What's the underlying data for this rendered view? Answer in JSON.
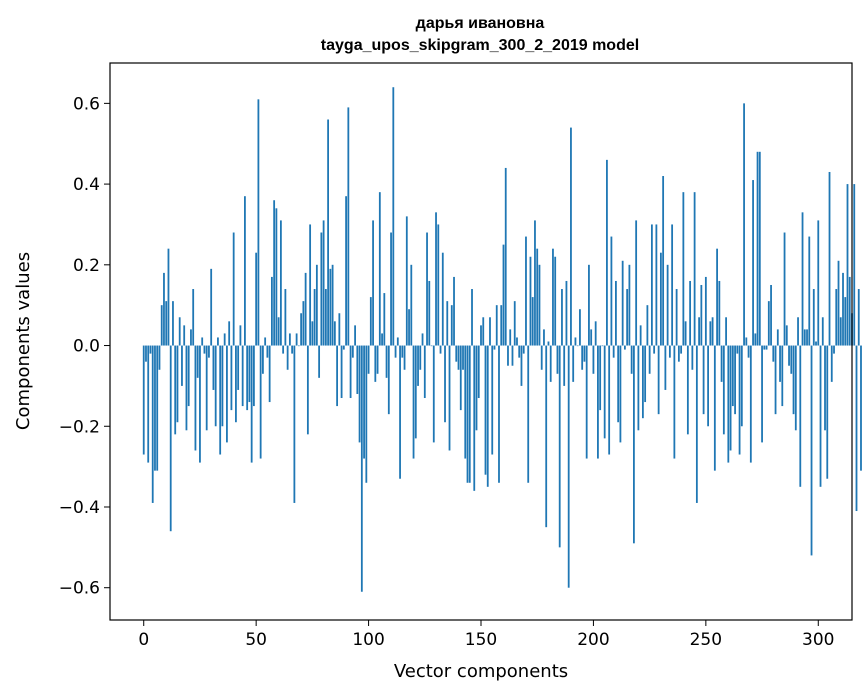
{
  "chart_data": {
    "type": "bar",
    "title": "дарья ивановна",
    "subtitle": "tayga_upos_skipgram_300_2_2019 model",
    "xlabel": "Vector components",
    "ylabel": "Components values",
    "xlim": [
      -15,
      315
    ],
    "ylim": [
      -0.68,
      0.7
    ],
    "grid": false,
    "bar_color": "#1f77b4",
    "x_ticks": [
      {
        "value": 0,
        "label": "0"
      },
      {
        "value": 50,
        "label": "50"
      },
      {
        "value": 100,
        "label": "100"
      },
      {
        "value": 150,
        "label": "150"
      },
      {
        "value": 200,
        "label": "200"
      },
      {
        "value": 250,
        "label": "250"
      },
      {
        "value": 300,
        "label": "300"
      }
    ],
    "y_ticks": [
      {
        "value": -0.6,
        "label": "−0.6"
      },
      {
        "value": -0.4,
        "label": "−0.4"
      },
      {
        "value": -0.2,
        "label": "−0.2"
      },
      {
        "value": 0.0,
        "label": "0.0"
      },
      {
        "value": 0.2,
        "label": "0.2"
      },
      {
        "value": 0.4,
        "label": "0.4"
      },
      {
        "value": 0.6,
        "label": "0.6"
      }
    ],
    "values": [
      -0.27,
      -0.04,
      -0.29,
      -0.02,
      -0.39,
      -0.31,
      -0.31,
      -0.06,
      0.1,
      0.18,
      0.11,
      0.24,
      -0.46,
      0.11,
      -0.22,
      -0.19,
      0.07,
      -0.1,
      0.05,
      -0.21,
      -0.15,
      0.04,
      0.14,
      -0.26,
      -0.08,
      -0.29,
      0.02,
      -0.02,
      -0.21,
      -0.03,
      0.19,
      -0.11,
      -0.2,
      0.02,
      -0.27,
      -0.2,
      0.03,
      -0.24,
      0.06,
      -0.16,
      0.28,
      -0.19,
      -0.11,
      0.05,
      -0.15,
      0.37,
      -0.16,
      -0.14,
      -0.29,
      -0.15,
      0.23,
      0.61,
      -0.28,
      -0.07,
      0.02,
      -0.03,
      -0.14,
      0.17,
      0.36,
      0.34,
      0.07,
      0.31,
      -0.02,
      0.14,
      -0.06,
      0.03,
      -0.02,
      -0.39,
      0.03,
      0.0,
      0.08,
      0.11,
      0.18,
      -0.22,
      0.3,
      0.06,
      0.14,
      0.2,
      -0.08,
      0.28,
      0.31,
      0.14,
      0.56,
      0.19,
      0.2,
      0.06,
      -0.15,
      0.08,
      -0.13,
      -0.01,
      0.37,
      0.59,
      -0.13,
      -0.03,
      0.05,
      -0.12,
      -0.24,
      -0.61,
      -0.28,
      -0.34,
      -0.07,
      0.12,
      0.31,
      -0.09,
      -0.07,
      0.38,
      0.03,
      0.13,
      -0.08,
      -0.17,
      0.28,
      0.64,
      -0.03,
      0.02,
      -0.33,
      -0.03,
      -0.06,
      0.32,
      0.09,
      0.2,
      -0.28,
      -0.23,
      -0.1,
      -0.06,
      0.03,
      -0.13,
      0.28,
      0.16,
      0.0,
      -0.24,
      0.33,
      0.3,
      -0.02,
      0.23,
      -0.19,
      0.11,
      -0.26,
      0.1,
      0.17,
      -0.04,
      -0.06,
      -0.16,
      -0.06,
      -0.28,
      -0.34,
      -0.34,
      0.14,
      -0.36,
      -0.21,
      -0.13,
      0.05,
      0.07,
      -0.32,
      -0.35,
      0.07,
      -0.27,
      -0.01,
      0.1,
      -0.34,
      0.1,
      0.25,
      0.44,
      -0.05,
      0.04,
      -0.05,
      0.11,
      0.02,
      -0.03,
      -0.1,
      -0.02,
      0.27,
      -0.34,
      0.22,
      0.12,
      0.31,
      0.24,
      0.2,
      -0.06,
      0.04,
      -0.45,
      0.01,
      -0.09,
      0.24,
      0.22,
      -0.07,
      -0.5,
      0.14,
      -0.1,
      0.16,
      -0.6,
      0.54,
      -0.09,
      0.02,
      0.0,
      0.09,
      -0.06,
      -0.04,
      -0.28,
      0.2,
      0.04,
      -0.07,
      0.06,
      -0.28,
      -0.16,
      0.0,
      -0.23,
      0.46,
      -0.27,
      0.27,
      -0.03,
      0.16,
      -0.19,
      -0.24,
      0.21,
      -0.01,
      0.14,
      0.2,
      -0.07,
      -0.49,
      0.31,
      -0.21,
      0.05,
      -0.18,
      -0.14,
      0.1,
      -0.07,
      0.3,
      -0.02,
      0.3,
      -0.17,
      0.23,
      0.42,
      -0.11,
      0.2,
      -0.03,
      0.3,
      -0.28,
      0.14,
      -0.04,
      -0.02,
      0.38,
      0.06,
      -0.22,
      0.16,
      -0.06,
      0.38,
      -0.39,
      0.07,
      0.15,
      -0.17,
      0.17,
      -0.2,
      0.06,
      0.07,
      -0.31,
      0.24,
      0.16,
      -0.09,
      -0.22,
      0.07,
      -0.29,
      -0.26,
      -0.15,
      -0.17,
      -0.02,
      -0.27,
      -0.2,
      0.6,
      0.02,
      -0.03,
      -0.29,
      0.41,
      0.03,
      0.48,
      0.48,
      -0.24,
      -0.01,
      -0.01,
      0.11,
      0.15,
      -0.04,
      -0.17,
      0.04,
      -0.09,
      -0.15,
      0.28,
      0.05,
      -0.05,
      -0.07,
      -0.17,
      -0.21,
      0.07,
      -0.35,
      0.33,
      0.04,
      0.04,
      0.27,
      -0.52,
      0.14,
      0.01,
      0.31,
      -0.35,
      0.07,
      -0.21,
      -0.33,
      0.43,
      -0.09,
      -0.02,
      0.14,
      0.21,
      0.07,
      0.18,
      0.12,
      0.4,
      0.17,
      0.08,
      0.4,
      -0.41,
      0.14,
      -0.31
    ]
  }
}
